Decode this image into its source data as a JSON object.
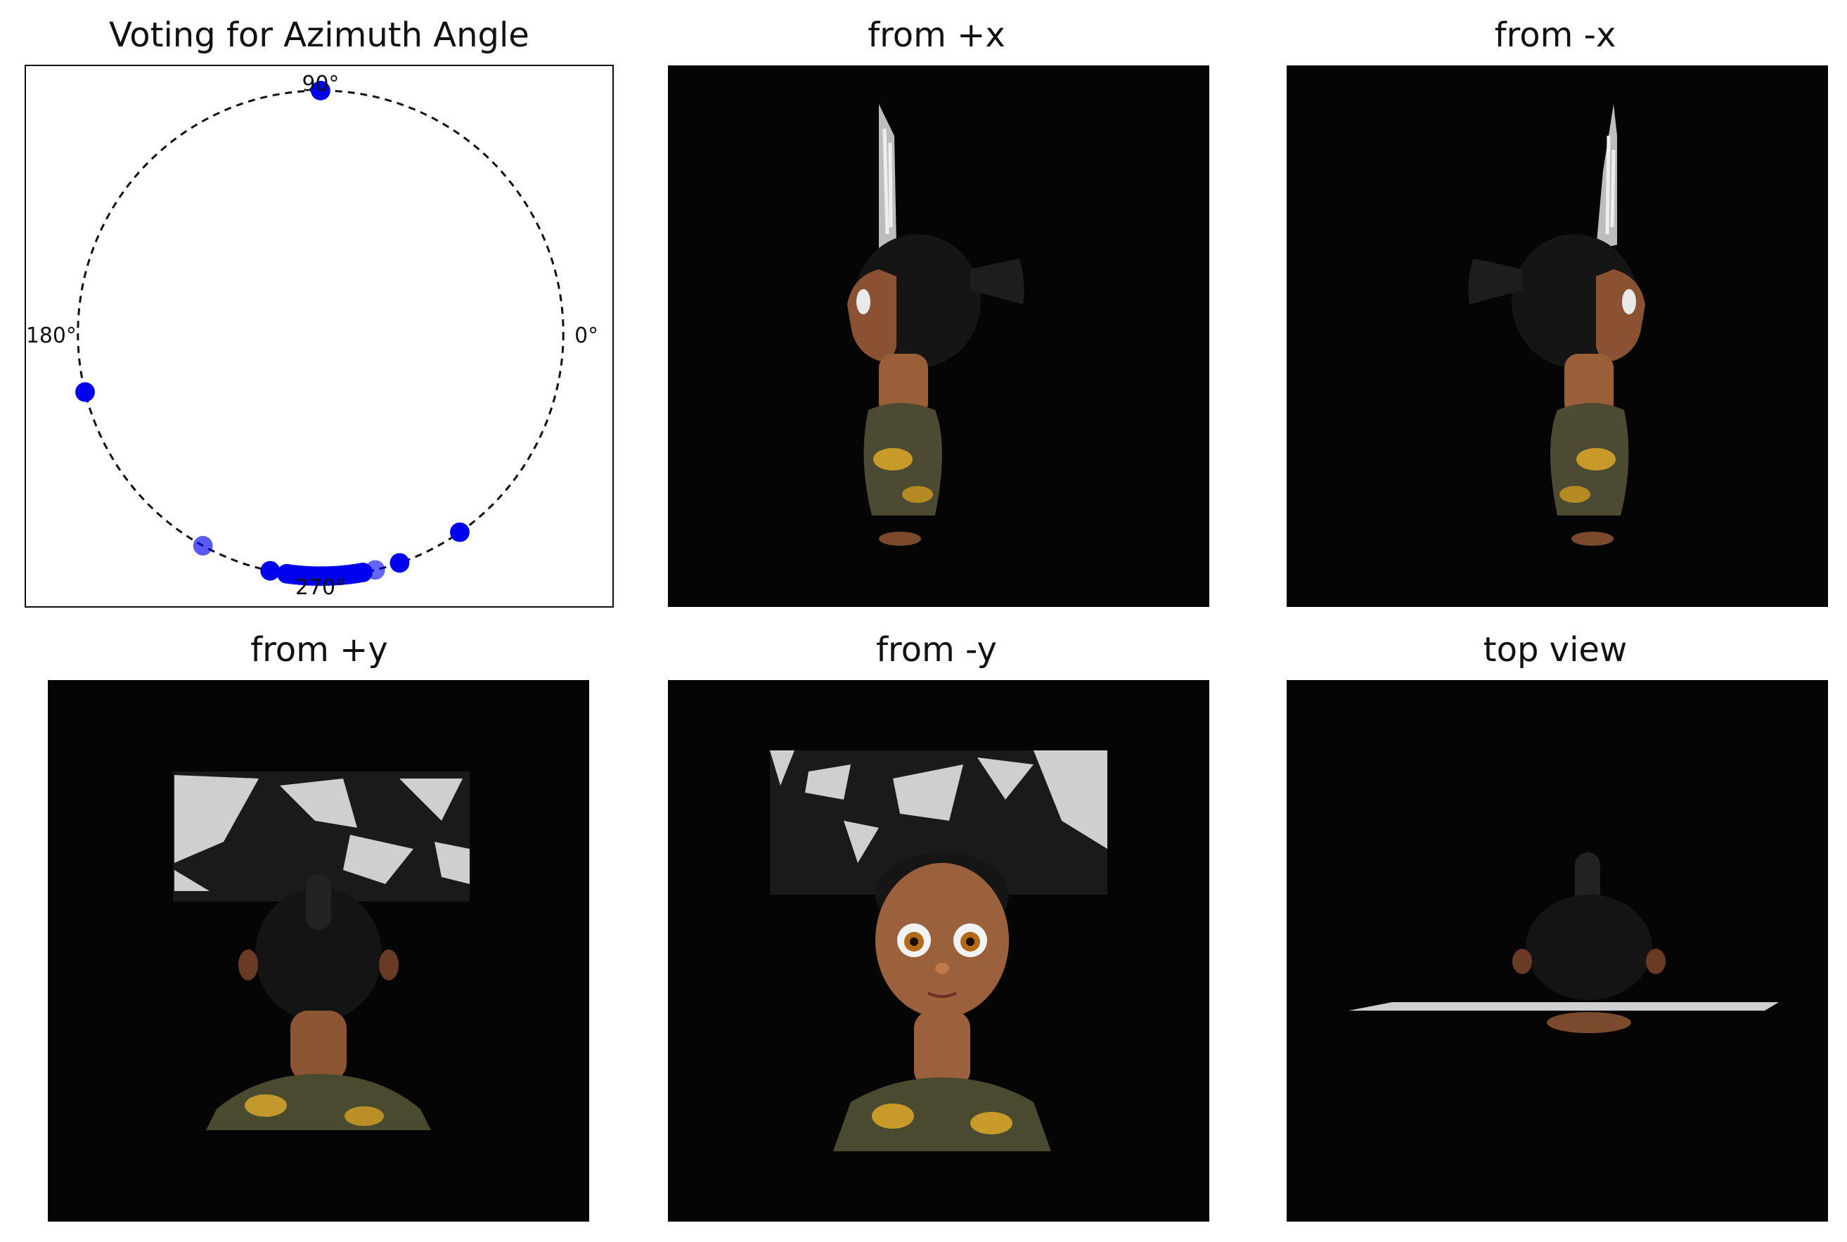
{
  "titles": {
    "polar": "Voting for Azimuth Angle",
    "plus_x": "from +x",
    "minus_x": "from -x",
    "plus_y": "from +y",
    "minus_y": "from -y",
    "top": "top view"
  },
  "chart_data": {
    "type": "scatter",
    "coordinate_system": "polar",
    "title": "Voting for Azimuth Angle",
    "angle_unit": "degrees",
    "angle_ticks": [
      {
        "angle": 0,
        "label": "0°"
      },
      {
        "angle": 90,
        "label": "90°"
      },
      {
        "angle": 180,
        "label": "180°"
      },
      {
        "angle": 270,
        "label": "270°"
      }
    ],
    "circle_style": "dashed",
    "marker_color": "#0000ee",
    "points": [
      {
        "angle": 90,
        "alpha": 1.0
      },
      {
        "angle": 194,
        "alpha": 1.0
      },
      {
        "angle": 241,
        "alpha": 0.65
      },
      {
        "angle": 258,
        "alpha": 1.0
      },
      {
        "angle": 262,
        "alpha": 1.0
      },
      {
        "angle": 263,
        "alpha": 1.0
      },
      {
        "angle": 264,
        "alpha": 1.0
      },
      {
        "angle": 265,
        "alpha": 1.0
      },
      {
        "angle": 266,
        "alpha": 1.0
      },
      {
        "angle": 267,
        "alpha": 1.0
      },
      {
        "angle": 268,
        "alpha": 1.0
      },
      {
        "angle": 269,
        "alpha": 1.0
      },
      {
        "angle": 270,
        "alpha": 1.0
      },
      {
        "angle": 271,
        "alpha": 1.0
      },
      {
        "angle": 272,
        "alpha": 1.0
      },
      {
        "angle": 273,
        "alpha": 1.0
      },
      {
        "angle": 274,
        "alpha": 1.0
      },
      {
        "angle": 275,
        "alpha": 1.0
      },
      {
        "angle": 276,
        "alpha": 1.0
      },
      {
        "angle": 277,
        "alpha": 1.0
      },
      {
        "angle": 278,
        "alpha": 1.0
      },
      {
        "angle": 279,
        "alpha": 1.0
      },
      {
        "angle": 280,
        "alpha": 1.0
      },
      {
        "angle": 283,
        "alpha": 0.6
      },
      {
        "angle": 289,
        "alpha": 1.0
      },
      {
        "angle": 305,
        "alpha": 1.0
      }
    ]
  }
}
